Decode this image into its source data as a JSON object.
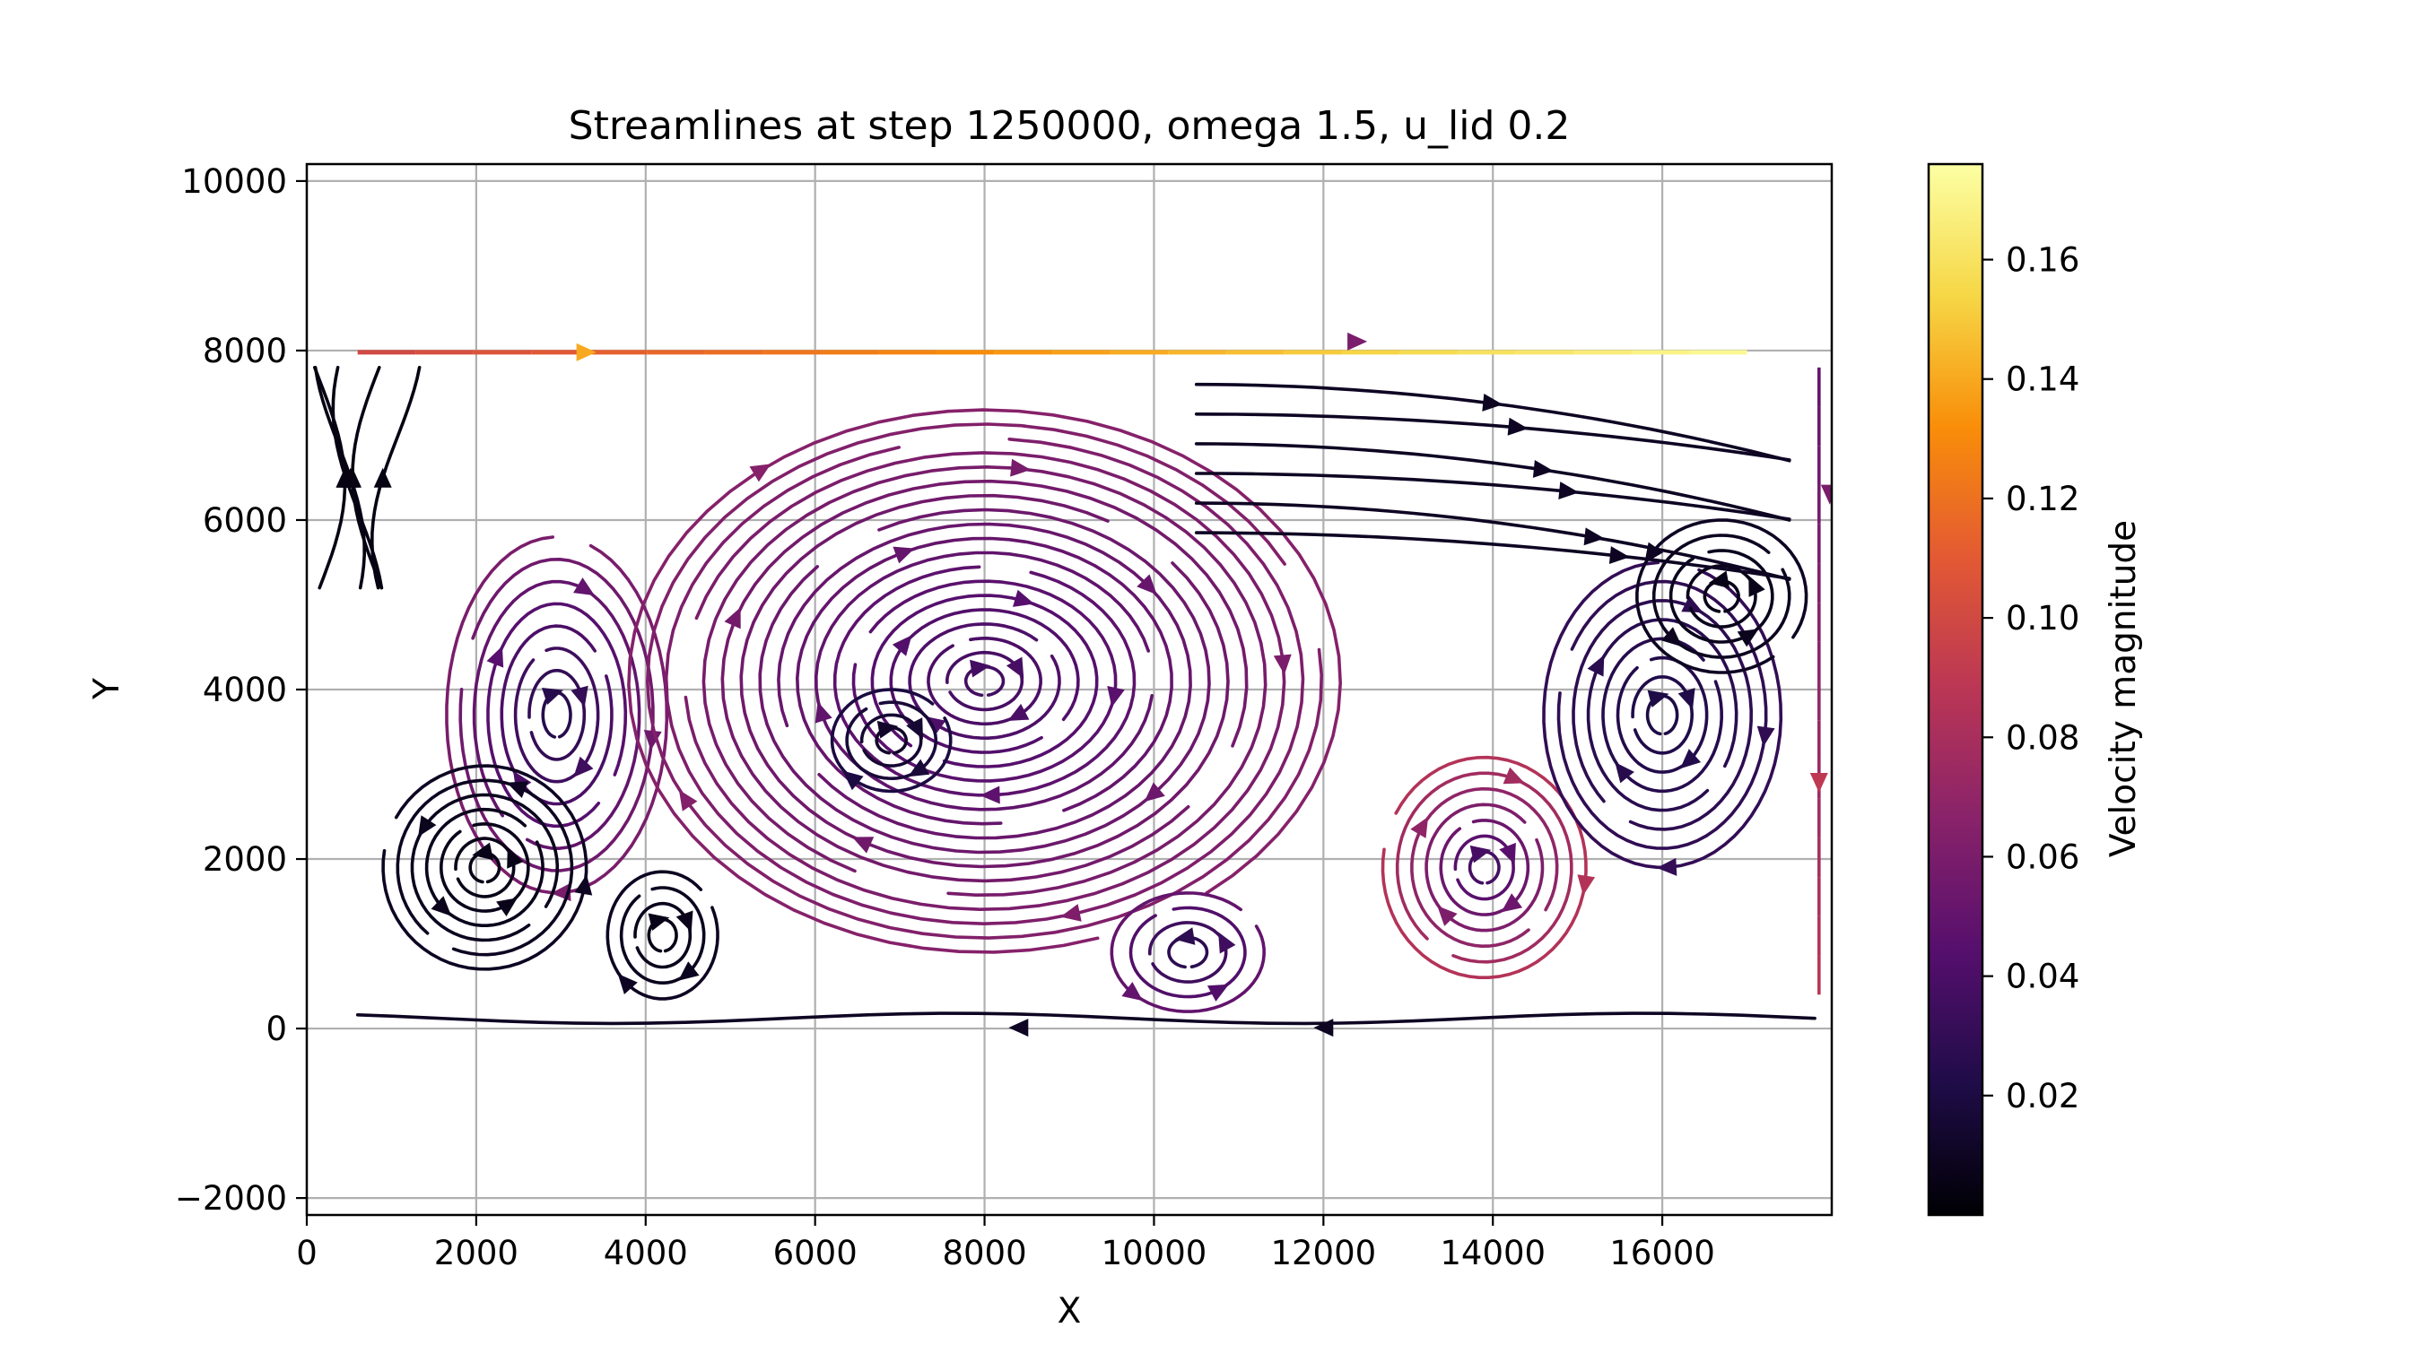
{
  "chart_data": {
    "type": "streamplot",
    "title": "Streamlines at step 1250000, omega 1.5, u_lid 0.2",
    "xlabel": "X",
    "ylabel": "Y",
    "xlim": [
      0,
      18000
    ],
    "ylim": [
      -2200,
      10200
    ],
    "xticks": [
      0,
      2000,
      4000,
      6000,
      8000,
      10000,
      12000,
      14000,
      16000
    ],
    "yticks": [
      -2000,
      0,
      2000,
      4000,
      6000,
      8000,
      10000
    ],
    "xtick_labels": [
      "0",
      "2000",
      "4000",
      "6000",
      "8000",
      "10000",
      "12000",
      "14000",
      "16000"
    ],
    "ytick_labels": [
      "−2000",
      "0",
      "2000",
      "4000",
      "6000",
      "8000",
      "10000"
    ],
    "grid": true,
    "colormap": "inferno",
    "colorbar": {
      "label": "Velocity magnitude",
      "range": [
        0.0,
        0.176
      ],
      "ticks": [
        0.02,
        0.04,
        0.06,
        0.08,
        0.1,
        0.12,
        0.14,
        0.16
      ],
      "tick_labels": [
        "0.02",
        "0.04",
        "0.06",
        "0.08",
        "0.10",
        "0.12",
        "0.14",
        "0.16"
      ]
    },
    "domain": {
      "x": [
        0,
        18000
      ],
      "y": [
        0,
        8000
      ]
    },
    "lid": {
      "y": 8000,
      "x": [
        600,
        17000
      ],
      "speed_start": 0.1,
      "speed_end": 0.175,
      "direction": "right"
    },
    "vortices": [
      {
        "x": 2950,
        "y": 3700,
        "rx": 1300,
        "ry": 2100,
        "rotation": "clockwise",
        "speed_inner": 0.02,
        "speed_outer": 0.06
      },
      {
        "x": 2100,
        "y": 1900,
        "rx": 1200,
        "ry": 1200,
        "rotation": "counterclockwise",
        "speed_inner": 0.005,
        "speed_outer": 0.01
      },
      {
        "x": 4200,
        "y": 1100,
        "rx": 650,
        "ry": 750,
        "rotation": "clockwise",
        "speed_inner": 0.005,
        "speed_outer": 0.01
      },
      {
        "x": 8000,
        "y": 4100,
        "rx": 4200,
        "ry": 3200,
        "rotation": "clockwise",
        "speed_inner": 0.035,
        "speed_outer": 0.065
      },
      {
        "x": 6900,
        "y": 3400,
        "rx": 700,
        "ry": 600,
        "rotation": "clockwise",
        "speed_inner": 0.01,
        "speed_outer": 0.02
      },
      {
        "x": 13900,
        "y": 1900,
        "rx": 1200,
        "ry": 1300,
        "rotation": "clockwise",
        "speed_inner": 0.03,
        "speed_outer": 0.085
      },
      {
        "x": 16000,
        "y": 3700,
        "rx": 1400,
        "ry": 1800,
        "rotation": "clockwise",
        "speed_inner": 0.02,
        "speed_outer": 0.03
      },
      {
        "x": 16700,
        "y": 5100,
        "rx": 1000,
        "ry": 900,
        "rotation": "counterclockwise",
        "speed_inner": 0.005,
        "speed_outer": 0.01
      },
      {
        "x": 10400,
        "y": 900,
        "rx": 900,
        "ry": 700,
        "rotation": "counterclockwise",
        "speed_inner": 0.02,
        "speed_outer": 0.05
      }
    ]
  }
}
